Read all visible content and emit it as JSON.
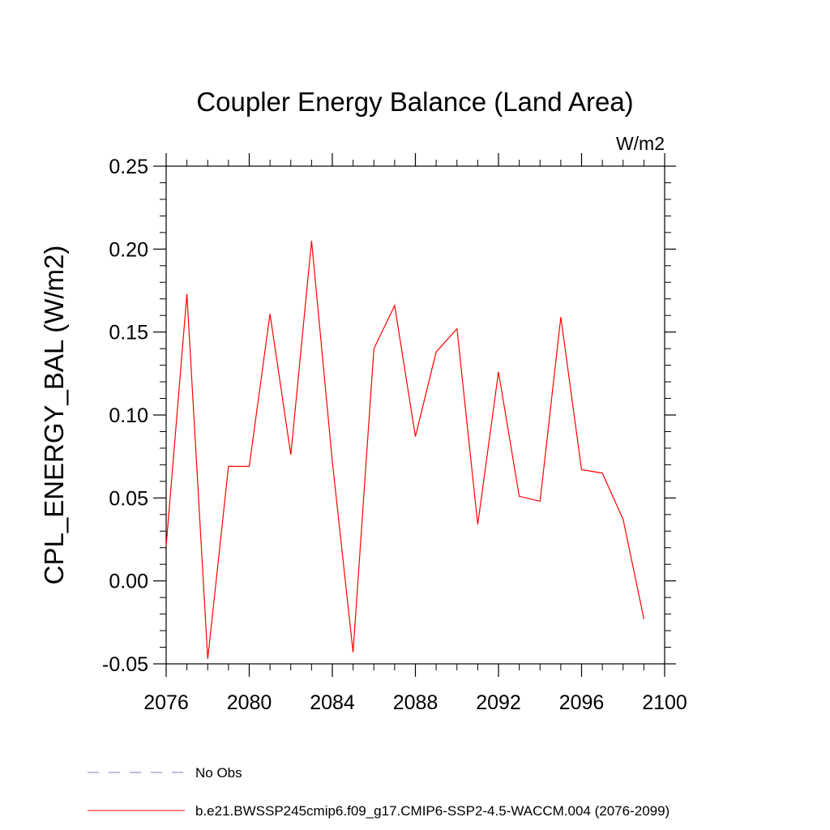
{
  "chart_data": {
    "type": "line",
    "title": "Coupler Energy Balance (Land Area)",
    "units": "W/m2",
    "ylabel": "CPL_ENERGY_BAL  (W/m2)",
    "xlabel": "",
    "xlim": [
      2076,
      2100
    ],
    "ylim": [
      -0.05,
      0.25
    ],
    "x_ticks": [
      2076,
      2080,
      2084,
      2088,
      2092,
      2096,
      2100
    ],
    "x_tick_labels": [
      "2076",
      "2080",
      "2084",
      "2088",
      "2092",
      "2096",
      "2100"
    ],
    "y_ticks": [
      -0.05,
      0.0,
      0.05,
      0.1,
      0.15,
      0.2,
      0.25
    ],
    "y_tick_labels": [
      "-0.05",
      "0.00",
      "0.05",
      "0.10",
      "0.15",
      "0.20",
      "0.25"
    ],
    "grid": false,
    "legend_position": "bottom-left",
    "series": [
      {
        "name": "b.e21.BWSSP245cmip6.f09_g17.CMIP6-SSP2-4.5-WACCM.004 (2076-2099)",
        "color": "#ff0000",
        "style": "solid",
        "x": [
          2076,
          2077,
          2078,
          2079,
          2080,
          2081,
          2082,
          2083,
          2084,
          2085,
          2086,
          2087,
          2088,
          2089,
          2090,
          2091,
          2092,
          2093,
          2094,
          2095,
          2096,
          2097,
          2098,
          2099
        ],
        "y": [
          0.021,
          0.173,
          -0.047,
          0.069,
          0.069,
          0.161,
          0.076,
          0.205,
          0.072,
          -0.043,
          0.14,
          0.166,
          0.087,
          0.138,
          0.152,
          0.034,
          0.126,
          0.051,
          0.048,
          0.159,
          0.067,
          0.065,
          0.037,
          -0.023
        ]
      },
      {
        "name": "No Obs",
        "color": "#8878b8",
        "style": "dashed",
        "x": [],
        "y": []
      }
    ]
  }
}
